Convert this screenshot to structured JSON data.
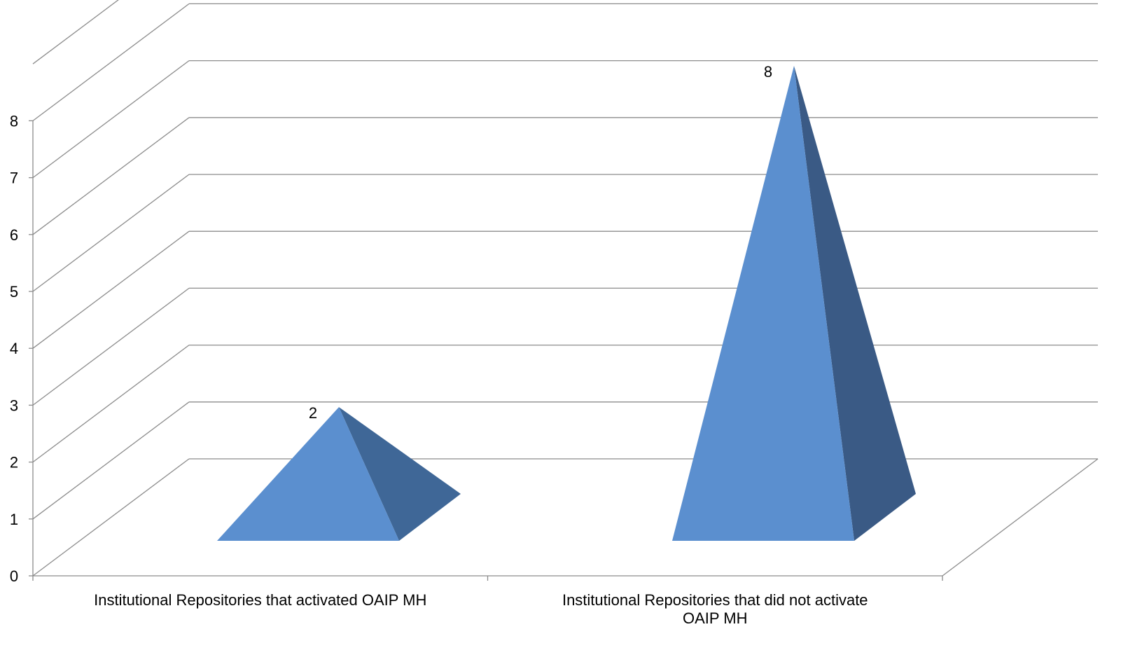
{
  "chart_data": {
    "type": "bar",
    "style": "3d-pyramid",
    "title": "",
    "xlabel": "",
    "ylabel": "",
    "ylim": [
      0,
      8
    ],
    "y_ticks": [
      "0",
      "1",
      "2",
      "3",
      "4",
      "5",
      "6",
      "7",
      "8"
    ],
    "categories": [
      "Institutional Repositories that activated OAIP MH",
      "Institutional Repositories that did not activate OAIP MH"
    ],
    "series": [
      {
        "values": [
          2,
          8
        ],
        "data_labels": [
          "2",
          "8"
        ]
      }
    ],
    "grid": true,
    "legend": "none",
    "colors": {
      "face": "#5B8FCF",
      "side": "#3F6797",
      "side_dark": "#3A5A85",
      "grid": "#8C8C8C",
      "axis": "#8C8C8C"
    }
  }
}
